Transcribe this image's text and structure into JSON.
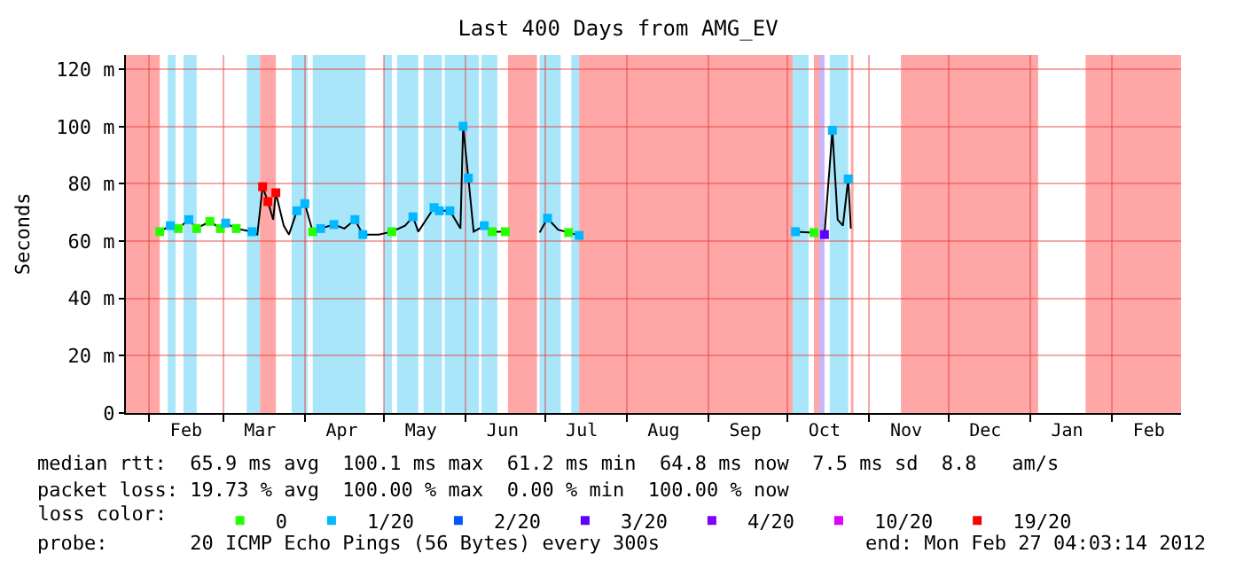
{
  "chart_data": {
    "type": "line",
    "title": "Last 400 Days from AMG_EV",
    "ylabel": "Seconds",
    "legend_title": "loss color:",
    "xlim": [
      "2011-01-23T04:03",
      "2012-02-27T04:03"
    ],
    "xticks": [
      {
        "value": "2011-02-01",
        "label": null
      },
      {
        "value": "2011-02-15",
        "label": "Feb"
      },
      {
        "value": "2011-03-01",
        "label": null
      },
      {
        "value": "2011-03-15",
        "label": "Mar"
      },
      {
        "value": "2011-04-01",
        "label": null
      },
      {
        "value": "2011-04-15",
        "label": "Apr"
      },
      {
        "value": "2011-05-01",
        "label": null
      },
      {
        "value": "2011-05-15",
        "label": "May"
      },
      {
        "value": "2011-06-01",
        "label": null
      },
      {
        "value": "2011-06-15",
        "label": "Jun"
      },
      {
        "value": "2011-07-01",
        "label": null
      },
      {
        "value": "2011-07-15",
        "label": "Jul"
      },
      {
        "value": "2011-08-01",
        "label": null
      },
      {
        "value": "2011-08-15",
        "label": "Aug"
      },
      {
        "value": "2011-09-01",
        "label": null
      },
      {
        "value": "2011-09-15",
        "label": "Sep"
      },
      {
        "value": "2011-10-01",
        "label": null
      },
      {
        "value": "2011-10-15",
        "label": "Oct"
      },
      {
        "value": "2011-11-01",
        "label": null
      },
      {
        "value": "2011-11-15",
        "label": "Nov"
      },
      {
        "value": "2011-12-01",
        "label": null
      },
      {
        "value": "2011-12-15",
        "label": "Dec"
      },
      {
        "value": "2012-01-01",
        "label": null
      },
      {
        "value": "2012-01-15",
        "label": "Jan"
      },
      {
        "value": "2012-02-01",
        "label": null
      },
      {
        "value": "2012-02-15",
        "label": "Feb"
      }
    ],
    "ylim": [
      0,
      125
    ],
    "yticks": [
      0,
      {
        "value": 20,
        "label": "20 m"
      },
      {
        "value": 40,
        "label": "40 m"
      },
      {
        "value": 60,
        "label": "60 m"
      },
      {
        "value": 80,
        "label": "80 m"
      },
      {
        "value": 100,
        "label": "100 m"
      },
      {
        "value": 120,
        "label": "120 m"
      }
    ],
    "grid": true,
    "legend": "bottom",
    "series": [
      {
        "color": "#000000",
        "line_style": "solid",
        "x": [
          "2011-02-05",
          "2011-02-09",
          "2011-02-12",
          "2011-02-16",
          "2011-02-19",
          "2011-02-24",
          "2011-02-28",
          "2011-03-02",
          "2011-03-06",
          "2011-03-12",
          "2011-03-14",
          "2011-03-16",
          "2011-03-18",
          "2011-03-20",
          "2011-03-21",
          "2011-03-24",
          "2011-03-26",
          "2011-03-29",
          "2011-04-01",
          "2011-04-04",
          "2011-04-07",
          "2011-04-12",
          "2011-04-16",
          "2011-04-20",
          "2011-04-23",
          "2011-04-29",
          "2011-05-04",
          "2011-05-09",
          "2011-05-12",
          "2011-05-14",
          "2011-05-20",
          "2011-05-22",
          "2011-05-26",
          "2011-05-30",
          "2011-05-31",
          "2011-06-02",
          "2011-06-04",
          "2011-06-08",
          "2011-06-11",
          "2011-06-16",
          "2011-06-22",
          "2011-06-29",
          "2011-07-02",
          "2011-07-06",
          "2011-07-10",
          "2011-07-14",
          "2011-08-01",
          "2011-10-04",
          "2011-10-11",
          "2011-10-12",
          "2011-10-15",
          "2011-10-18",
          "2011-10-20",
          "2011-10-22",
          "2011-10-24",
          "2011-10-25"
        ],
        "values": [
          63.3,
          65.4,
          64.4,
          67.5,
          64.4,
          66.9,
          64.4,
          66.3,
          64.4,
          63.3,
          62.3,
          79,
          73.8,
          67.5,
          76.9,
          65.4,
          62.3,
          70.6,
          73.1,
          63.3,
          64.4,
          65.8,
          64.4,
          67.5,
          62.3,
          62.3,
          63.3,
          65.4,
          68.5,
          63.3,
          71.7,
          70.6,
          70.6,
          64.4,
          100.1,
          82,
          63.3,
          65.4,
          63.3,
          63.3,
          null,
          63,
          68,
          64,
          63,
          62,
          null,
          63.3,
          63,
          null,
          62.3,
          98.7,
          67.5,
          65.4,
          81.7,
          64.4
        ]
      },
      {
        "type": "scatter",
        "name": "0",
        "color": "#26ff00",
        "marker": "square",
        "x": [
          "2011-02-05",
          "2011-02-12",
          "2011-02-19",
          "2011-02-24",
          "2011-02-28",
          "2011-03-06",
          "2011-04-04",
          "2011-05-04",
          "2011-06-11",
          "2011-06-16",
          "2011-07-10",
          "2011-10-11"
        ],
        "values": [
          63.3,
          64.4,
          64.4,
          66.9,
          64.4,
          64.4,
          63.3,
          63.3,
          63.3,
          63.3,
          63,
          63
        ]
      },
      {
        "type": "scatter",
        "name": "1/20",
        "color": "#00b8ff",
        "marker": "square",
        "x": [
          "2011-02-09",
          "2011-02-16",
          "2011-03-02",
          "2011-03-12",
          "2011-03-29",
          "2011-04-01",
          "2011-04-07",
          "2011-04-12",
          "2011-04-20",
          "2011-04-23",
          "2011-05-12",
          "2011-05-20",
          "2011-05-22",
          "2011-05-26",
          "2011-05-31",
          "2011-06-02",
          "2011-06-08",
          "2011-07-02",
          "2011-07-14",
          "2011-10-04",
          "2011-10-18",
          "2011-10-24"
        ],
        "values": [
          65.4,
          67.5,
          66.3,
          63.3,
          70.6,
          73.1,
          64.4,
          65.8,
          67.5,
          62.3,
          68.5,
          71.7,
          70.6,
          70.6,
          100.1,
          82,
          65.4,
          68,
          62,
          63.3,
          98.7,
          81.7
        ]
      },
      {
        "type": "scatter",
        "name": "2/20",
        "color": "#0059ff",
        "marker": "square"
      },
      {
        "type": "scatter",
        "name": "3/20",
        "color": "#5e00ff",
        "marker": "square",
        "x": [
          "2011-10-15"
        ],
        "values": [
          62.3
        ]
      },
      {
        "type": "scatter",
        "name": "4/20",
        "color": "#7e00ff",
        "marker": "square"
      },
      {
        "type": "scatter",
        "name": "10/20",
        "color": "#dd00ff",
        "marker": "square"
      },
      {
        "type": "scatter",
        "name": "19/20",
        "color": "#ff0000",
        "marker": "square",
        "x": [
          "2011-03-16",
          "2011-03-18",
          "2011-03-21"
        ],
        "values": [
          79,
          73.8,
          76.9
        ]
      }
    ],
    "bands": [
      {
        "axis": "x",
        "from": "2011-01-23T04:03",
        "to": "2011-02-05",
        "color": "#ffa6a6"
      },
      {
        "axis": "x",
        "from": "2011-02-08",
        "to": "2011-02-11",
        "color": "#aae6fa"
      },
      {
        "axis": "x",
        "from": "2011-02-14",
        "to": "2011-02-19",
        "color": "#aae6fa"
      },
      {
        "axis": "x",
        "from": "2011-03-10",
        "to": "2011-03-15",
        "color": "#aae6fa"
      },
      {
        "axis": "x",
        "from": "2011-03-15",
        "to": "2011-03-21",
        "color": "#ffa6a6"
      },
      {
        "axis": "x",
        "from": "2011-03-27",
        "to": "2011-04-02",
        "color": "#aae6fa"
      },
      {
        "axis": "x",
        "from": "2011-04-04",
        "to": "2011-04-24",
        "color": "#aae6fa"
      },
      {
        "axis": "x",
        "from": "2011-05-01",
        "to": "2011-05-04",
        "color": "#aae6fa"
      },
      {
        "axis": "x",
        "from": "2011-05-06",
        "to": "2011-05-14",
        "color": "#aae6fa"
      },
      {
        "axis": "x",
        "from": "2011-05-16",
        "to": "2011-05-23",
        "color": "#aae6fa"
      },
      {
        "axis": "x",
        "from": "2011-05-24",
        "to": "2011-06-06",
        "color": "#aae6fa"
      },
      {
        "axis": "x",
        "from": "2011-06-07",
        "to": "2011-06-13",
        "color": "#aae6fa"
      },
      {
        "axis": "x",
        "from": "2011-06-17",
        "to": "2011-06-28",
        "color": "#ffa6a6"
      },
      {
        "axis": "x",
        "from": "2011-06-29",
        "to": "2011-07-07",
        "color": "#aae6fa"
      },
      {
        "axis": "x",
        "from": "2011-07-11",
        "to": "2011-07-14",
        "color": "#aae6fa"
      },
      {
        "axis": "x",
        "from": "2011-07-14",
        "to": "2011-10-03",
        "color": "#ffa6a6"
      },
      {
        "axis": "x",
        "from": "2011-10-03",
        "to": "2011-10-09",
        "color": "#aae6fa"
      },
      {
        "axis": "x",
        "from": "2011-10-11",
        "to": "2011-10-13",
        "color": "#ffa6a6"
      },
      {
        "axis": "x",
        "from": "2011-10-13",
        "to": "2011-10-15",
        "color": "#c8b4f8"
      },
      {
        "axis": "x",
        "from": "2011-10-17",
        "to": "2011-10-24",
        "color": "#aae6fa"
      },
      {
        "axis": "x",
        "from": "2011-10-25",
        "to": "2011-10-26",
        "color": "#ffa6a6"
      },
      {
        "axis": "x",
        "from": "2011-11-13",
        "to": "2012-01-04",
        "color": "#ffa6a6"
      },
      {
        "axis": "x",
        "from": "2012-01-22",
        "to": "2012-02-27T04:03",
        "color": "#ffa6a6"
      }
    ],
    "annotations": [
      "median rtt:  65.9 ms avg  100.1 ms max  61.2 ms min  64.8 ms now  7.5 ms sd  8.8   am/s",
      "packet loss: 19.73 % avg  100.00 % max  0.00 % min  100.00 % now",
      "probe:       20 ICMP Echo Pings (56 Bytes) every 300s",
      "end: Mon Feb 27 04:03:14 2012"
    ]
  }
}
